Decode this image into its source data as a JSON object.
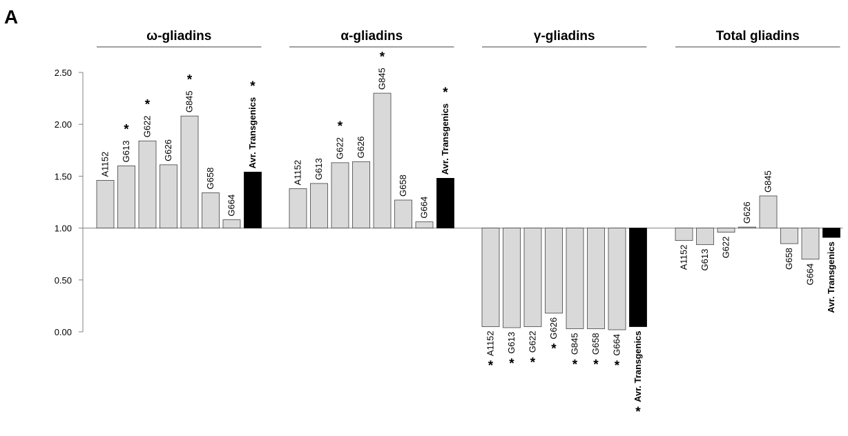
{
  "panel_label": "A",
  "colors": {
    "bar": "#d9d9d9",
    "average_bar": "#000000",
    "bar_stroke": "#404040",
    "axis": "#808080"
  },
  "chart_data": {
    "type": "bar",
    "baseline": 1.0,
    "ylim": [
      0,
      2.5
    ],
    "yticks": [
      "0.00",
      "0.50",
      "1.00",
      "1.50",
      "2.00",
      "2.50"
    ],
    "grid": false,
    "significance_marker": "*",
    "groups": [
      {
        "title": "ω-gliadins",
        "categories": [
          "A1152",
          "G613",
          "G622",
          "G626",
          "G845",
          "G658",
          "G664",
          "Avr. Transgenics"
        ],
        "values": [
          1.46,
          1.6,
          1.84,
          1.61,
          2.08,
          1.34,
          1.08,
          1.54
        ],
        "significant": [
          false,
          true,
          true,
          false,
          true,
          false,
          false,
          true
        ]
      },
      {
        "title": "α-gliadins",
        "categories": [
          "A1152",
          "G613",
          "G622",
          "G626",
          "G845",
          "G658",
          "G664",
          "Avr. Transgenics"
        ],
        "values": [
          1.38,
          1.43,
          1.63,
          1.64,
          2.3,
          1.27,
          1.06,
          1.48
        ],
        "significant": [
          false,
          false,
          true,
          false,
          true,
          false,
          false,
          true
        ]
      },
      {
        "title": "γ-gliadins",
        "categories": [
          "A1152",
          "G613",
          "G622",
          "G626",
          "G845",
          "G658",
          "G664",
          "Avr. Transgenics"
        ],
        "values": [
          0.05,
          0.04,
          0.05,
          0.18,
          0.03,
          0.03,
          0.02,
          0.05
        ],
        "significant": [
          true,
          true,
          true,
          true,
          true,
          true,
          true,
          true
        ]
      },
      {
        "title": "Total gliadins",
        "categories": [
          "A1152",
          "G613",
          "G622",
          "G626",
          "G845",
          "G658",
          "G664",
          "Avr. Transgenics"
        ],
        "values": [
          0.88,
          0.84,
          0.96,
          1.01,
          1.31,
          0.85,
          0.7,
          0.91
        ],
        "significant": [
          false,
          false,
          false,
          false,
          false,
          false,
          false,
          false
        ]
      }
    ]
  }
}
